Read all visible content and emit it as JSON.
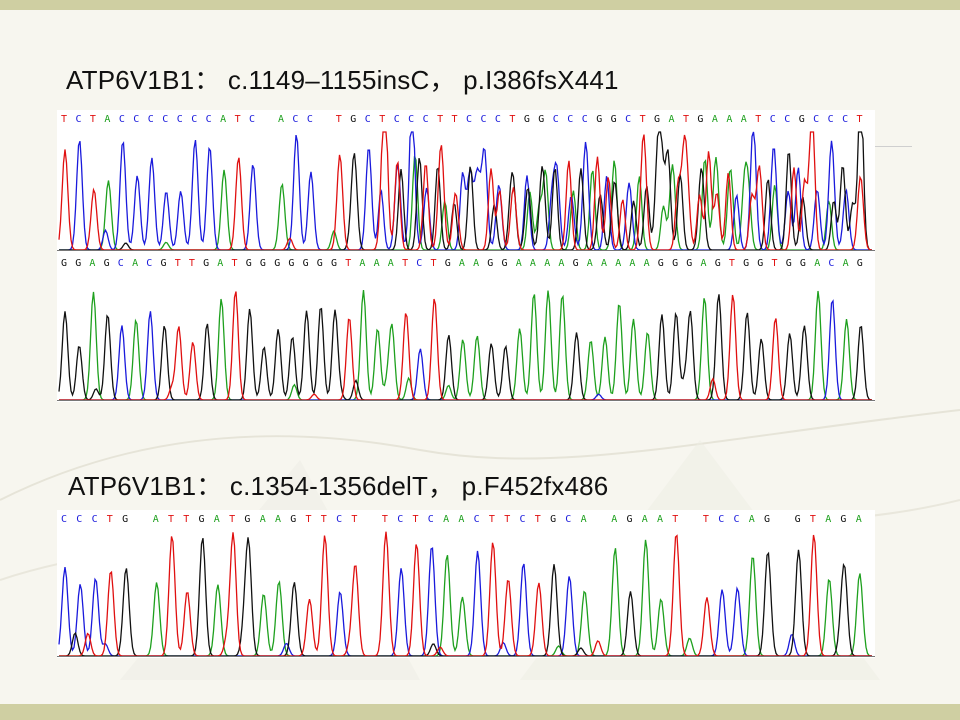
{
  "slide": {
    "title_1": "ATP6V1B1： c.1149–1155insC， p.I386fsX441",
    "title_2": "ATP6V1B1： c.1354-1356delT， p.F452fx486"
  },
  "tracks": [
    {
      "id": "t1",
      "sequence": "TCTACCCCCCCATC ACC TGCTCCCTTCCCTGGCCCGGCTGATGAAATCCGCCCT"
    },
    {
      "id": "t2",
      "sequence": "GGAGCACGTTGATGGGGGGGTAAATCTGAAGGAAAAGAAAAAGGGAGTGGTGGACAG"
    },
    {
      "id": "t3",
      "sequence": "CCCTG ATTGATGAAGTTCT TCTCAACTTCTGCA AGAAT TCCAG GTAGA"
    }
  ],
  "colors": {
    "A": "#1ea01e",
    "C": "#1a1adc",
    "G": "#111111",
    "T": "#e01010",
    "accent": "#cfcfa2"
  }
}
